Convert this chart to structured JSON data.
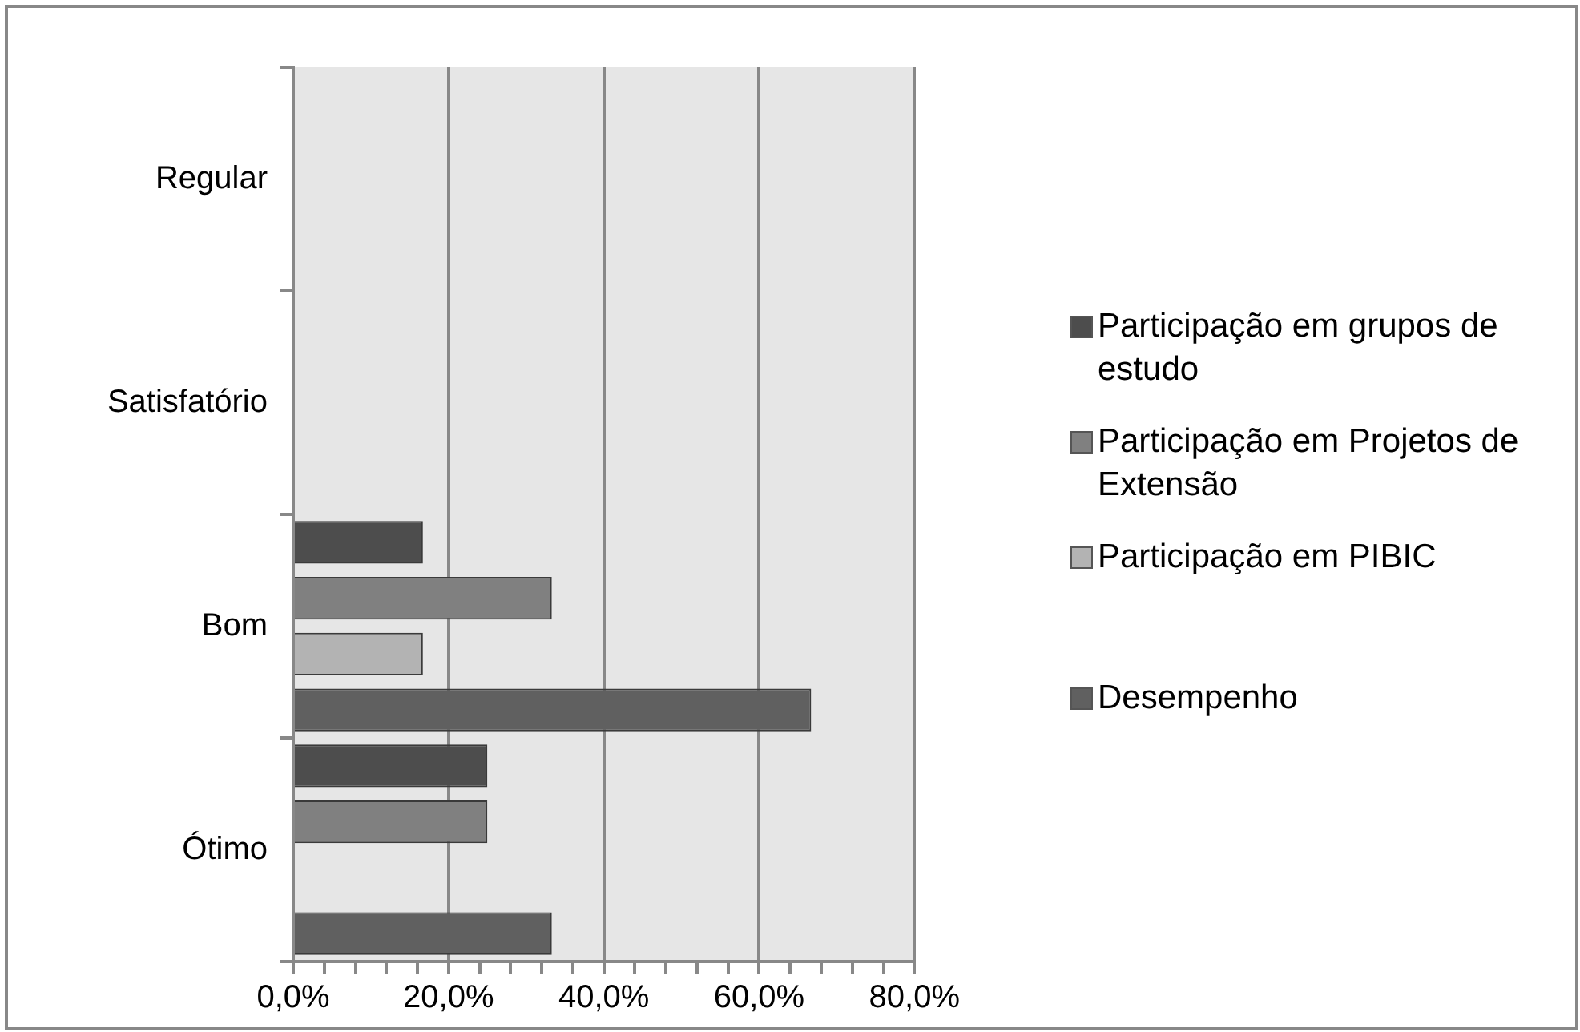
{
  "chart_data": {
    "type": "bar",
    "orientation": "horizontal",
    "categories": [
      "Regular",
      "Satisfatório",
      "Bom",
      "Ótimo"
    ],
    "series": [
      {
        "name": "Participação em grupos de estudo",
        "color": "#4d4d4d",
        "values": [
          null,
          null,
          16.7,
          25
        ]
      },
      {
        "name": "Participação em Projetos de Extensão",
        "color": "#808080",
        "values": [
          null,
          null,
          33.3,
          25
        ]
      },
      {
        "name": "Participação em PIBIC",
        "color": "#b3b3b3",
        "values": [
          null,
          null,
          16.7,
          null
        ]
      },
      {
        "name": "Desempenho",
        "color": "#606060",
        "values": [
          null,
          null,
          66.7,
          33.3
        ]
      }
    ],
    "xlim": [
      0,
      80
    ],
    "xticks": [
      {
        "value": 0,
        "label": "0,0%"
      },
      {
        "value": 4,
        "label": null
      },
      {
        "value": 8,
        "label": null
      },
      {
        "value": 12,
        "label": null
      },
      {
        "value": 16,
        "label": null
      },
      {
        "value": 20,
        "label": "20,0%"
      },
      {
        "value": 24,
        "label": null
      },
      {
        "value": 28,
        "label": null
      },
      {
        "value": 32,
        "label": null
      },
      {
        "value": 36,
        "label": null
      },
      {
        "value": 40,
        "label": "40,0%"
      },
      {
        "value": 44,
        "label": null
      },
      {
        "value": 48,
        "label": null
      },
      {
        "value": 52,
        "label": null
      },
      {
        "value": 56,
        "label": null
      },
      {
        "value": 60,
        "label": "60,0%"
      },
      {
        "value": 64,
        "label": null
      },
      {
        "value": 68,
        "label": null
      },
      {
        "value": 72,
        "label": null
      },
      {
        "value": 76,
        "label": null
      },
      {
        "value": 80,
        "label": "80,0%"
      }
    ],
    "grid": "x",
    "legend": "right"
  }
}
